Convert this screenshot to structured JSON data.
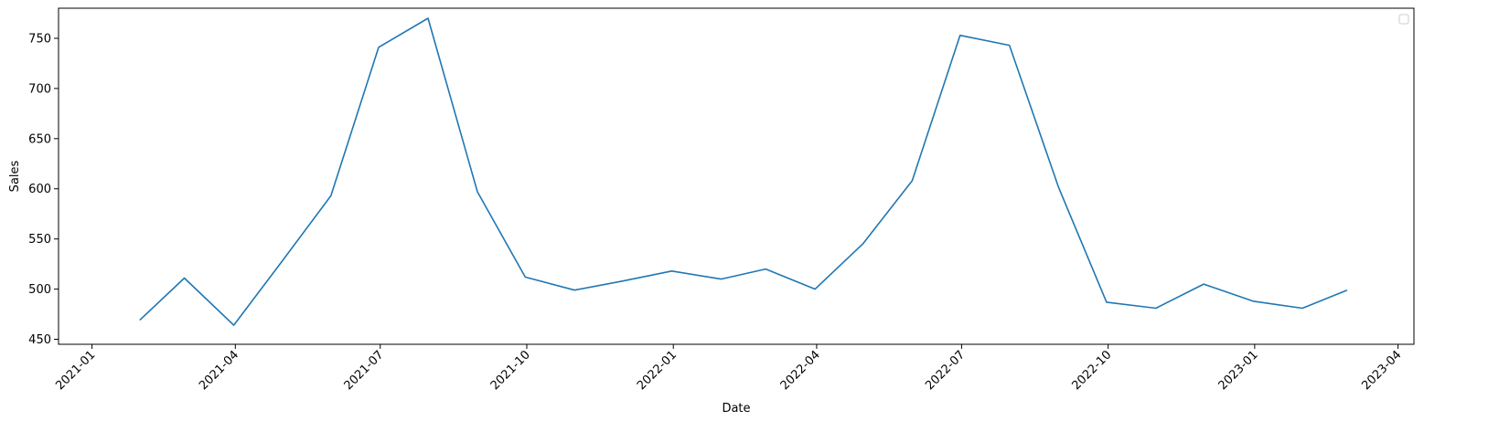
{
  "chart_data": {
    "type": "line",
    "xlabel": "Date",
    "ylabel": "Sales",
    "x_axis_type": "date",
    "xlim": [
      "2020-12-11",
      "2023-04-11"
    ],
    "ylim": [
      445,
      780
    ],
    "x_ticks": [
      "2021-01",
      "2021-04",
      "2021-07",
      "2021-10",
      "2022-01",
      "2022-04",
      "2022-07",
      "2022-10",
      "2023-01",
      "2023-04"
    ],
    "y_ticks": [
      450,
      500,
      550,
      600,
      650,
      700,
      750
    ],
    "x_tick_rotation": 45,
    "grid": false,
    "legend": {
      "placement": "top-right",
      "entries": []
    },
    "series": [
      {
        "color": "#1f77b4",
        "x": [
          "2021-01-31",
          "2021-02-28",
          "2021-03-31",
          "2021-04-30",
          "2021-05-31",
          "2021-06-30",
          "2021-07-31",
          "2021-08-31",
          "2021-09-30",
          "2021-10-31",
          "2021-11-30",
          "2021-12-31",
          "2022-01-31",
          "2022-02-28",
          "2022-03-31",
          "2022-04-30",
          "2022-05-31",
          "2022-06-30",
          "2022-07-31",
          "2022-08-31",
          "2022-09-30",
          "2022-10-31",
          "2022-11-30",
          "2022-12-31",
          "2023-01-31",
          "2023-02-28"
        ],
        "y": [
          469,
          511,
          464,
          527,
          593,
          741,
          770,
          597,
          512,
          499,
          508,
          518,
          510,
          520,
          500,
          545,
          608,
          753,
          743,
          601,
          487,
          481,
          505,
          488,
          481,
          499
        ]
      }
    ]
  }
}
